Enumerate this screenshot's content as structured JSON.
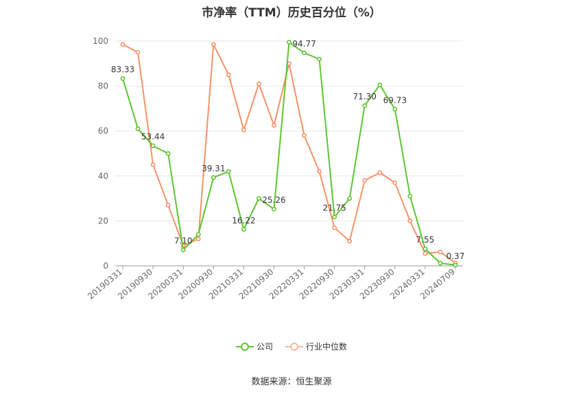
{
  "chart_data": {
    "type": "line",
    "title": "市净率（TTM）历史百分位（%）",
    "x": [
      "20190331",
      "20190630",
      "20190930",
      "20191231",
      "20200331",
      "20200630",
      "20200930",
      "20201231",
      "20210331",
      "20210630",
      "20210930",
      "20211231",
      "20220331",
      "20220630",
      "20220930",
      "20221231",
      "20230331",
      "20230630",
      "20230930",
      "20231231",
      "20240331",
      "20240630",
      "20240709"
    ],
    "x_tick_labels": [
      "20190331",
      "20190930",
      "20200331",
      "20200930",
      "20210331",
      "20210930",
      "20220331",
      "20220930",
      "20230331",
      "20230930",
      "20240331",
      "20240709"
    ],
    "ylim": [
      0,
      100
    ],
    "y_ticks": [
      0,
      20,
      40,
      60,
      80,
      100
    ],
    "grid": true,
    "series": [
      {
        "name": "公司",
        "color": "#5cc531",
        "values": [
          83.33,
          61.0,
          53.44,
          50.0,
          7.1,
          14.0,
          39.31,
          42.0,
          16.22,
          30.0,
          25.26,
          99.5,
          94.77,
          92.0,
          21.75,
          30.0,
          71.3,
          80.5,
          69.73,
          31.0,
          7.55,
          1.2,
          0.37
        ],
        "labels": {
          "0": "83.33",
          "2": "53.44",
          "4": "7.10",
          "6": "39.31",
          "8": "16.22",
          "10": "25.26",
          "12": "94.77",
          "14": "21.75",
          "16": "71.30",
          "18": "69.73",
          "20": "7.55",
          "22": "0.37"
        }
      },
      {
        "name": "行业中位数",
        "color": "#f59166",
        "values": [
          98.5,
          95.0,
          45.0,
          27.0,
          9.0,
          12.0,
          98.5,
          85.0,
          60.5,
          81.0,
          62.5,
          90.0,
          58.0,
          42.0,
          17.0,
          11.0,
          38.0,
          41.5,
          37.0,
          20.0,
          5.5,
          6.2,
          1.3
        ]
      }
    ],
    "legend_position": "bottom"
  },
  "legend": [
    {
      "label": "公司",
      "color": "#5cc531"
    },
    {
      "label": "行业中位数",
      "color": "#f59166"
    }
  ],
  "source": "数据来源：恒生聚源"
}
